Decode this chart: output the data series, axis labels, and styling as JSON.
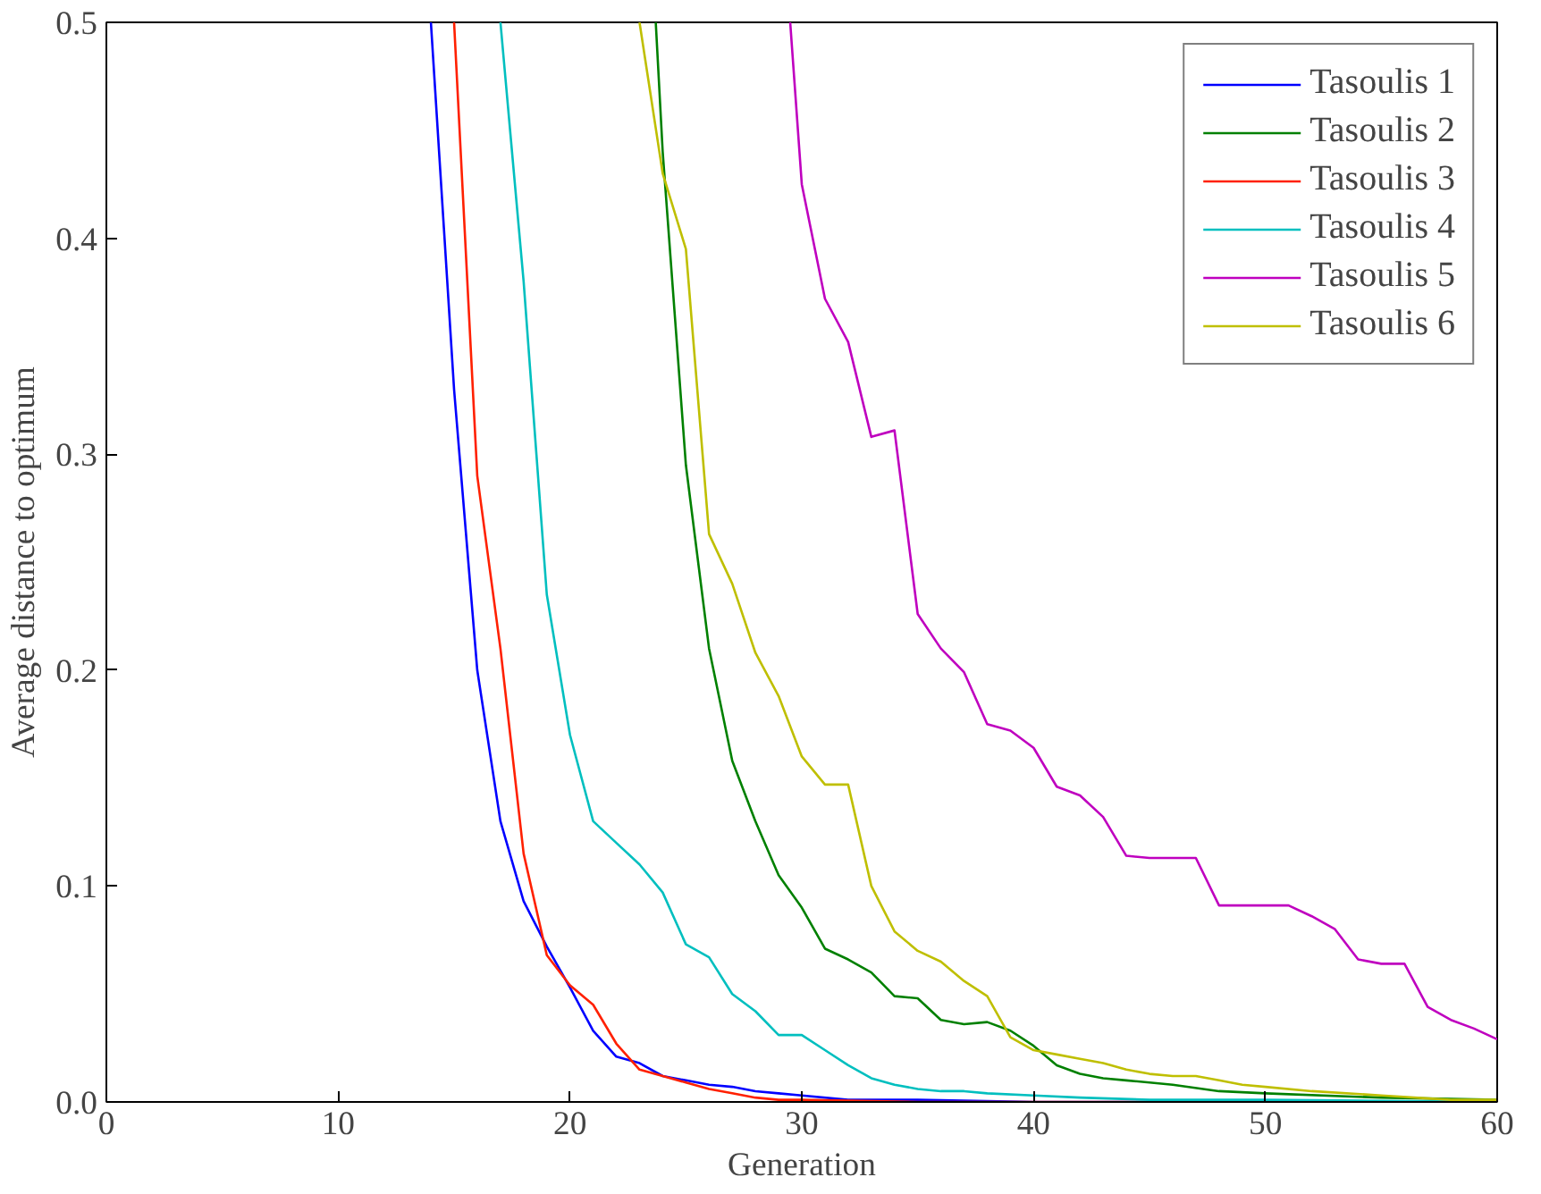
{
  "chart_data": {
    "type": "line",
    "xlabel": "Generation",
    "ylabel": "Average distance to optimum",
    "xlim": [
      0,
      60
    ],
    "ylim": [
      0,
      0.5
    ],
    "xticks": [
      0,
      10,
      20,
      30,
      40,
      50,
      60
    ],
    "yticks": [
      {
        "value": 0,
        "label": "0.0"
      },
      0.1,
      0.2,
      0.3,
      0.4,
      0.5
    ],
    "grid": false,
    "legend": "top right",
    "marker": "none",
    "line_style": "solid",
    "series": [
      {
        "name": "Tasoulis 1",
        "color": "#0000ff",
        "x": [
          14,
          15,
          16,
          17,
          18,
          19,
          20,
          21,
          22,
          23,
          24,
          25,
          26,
          27,
          28,
          29,
          30,
          32,
          35,
          40,
          60
        ],
        "values": [
          0.5,
          0.33,
          0.2,
          0.13,
          0.093,
          0.072,
          0.053,
          0.033,
          0.021,
          0.018,
          0.012,
          0.01,
          0.008,
          0.007,
          0.005,
          0.004,
          0.003,
          0.001,
          0.001,
          0,
          0
        ]
      },
      {
        "name": "Tasoulis 2",
        "color": "#008000",
        "x": [
          23.7,
          24,
          25,
          26,
          27,
          28,
          29,
          30,
          31,
          32,
          33,
          34,
          35,
          36,
          37,
          38,
          39,
          40,
          41,
          42,
          43,
          44,
          45,
          46,
          48,
          50,
          55,
          60
        ],
        "values": [
          0.5,
          0.44,
          0.295,
          0.21,
          0.158,
          0.13,
          0.105,
          0.09,
          0.071,
          0.066,
          0.06,
          0.049,
          0.048,
          0.038,
          0.036,
          0.037,
          0.033,
          0.026,
          0.017,
          0.013,
          0.011,
          0.01,
          0.009,
          0.008,
          0.005,
          0.004,
          0.002,
          0.001
        ]
      },
      {
        "name": "Tasoulis 3",
        "color": "#ff2000",
        "x": [
          15,
          16,
          17,
          18,
          19,
          20,
          21,
          22,
          23,
          24,
          25,
          26,
          27,
          28,
          29,
          30,
          35,
          60
        ],
        "values": [
          0.5,
          0.29,
          0.21,
          0.115,
          0.068,
          0.054,
          0.045,
          0.027,
          0.015,
          0.012,
          0.009,
          0.006,
          0.004,
          0.002,
          0.001,
          0.001,
          0,
          0
        ]
      },
      {
        "name": "Tasoulis 4",
        "color": "#00bfbf",
        "x": [
          17,
          18,
          19,
          20,
          21,
          22,
          23,
          24,
          25,
          26,
          27,
          28,
          29,
          30,
          31,
          32,
          33,
          34,
          35,
          36,
          37,
          38,
          40,
          42,
          45,
          50,
          60
        ],
        "values": [
          0.5,
          0.38,
          0.235,
          0.17,
          0.13,
          0.12,
          0.11,
          0.097,
          0.073,
          0.067,
          0.05,
          0.042,
          0.031,
          0.031,
          0.024,
          0.017,
          0.011,
          0.008,
          0.006,
          0.005,
          0.005,
          0.004,
          0.003,
          0.002,
          0.001,
          0.001,
          0
        ]
      },
      {
        "name": "Tasoulis 5",
        "color": "#bf00bf",
        "x": [
          29.5,
          30,
          31,
          32,
          33,
          34,
          35,
          36,
          37,
          38,
          39,
          40,
          41,
          42,
          43,
          44,
          45,
          46,
          47,
          48,
          49,
          50,
          51,
          52,
          53,
          54,
          55,
          56,
          57,
          58,
          59,
          60
        ],
        "values": [
          0.5,
          0.425,
          0.372,
          0.352,
          0.308,
          0.311,
          0.226,
          0.21,
          0.199,
          0.175,
          0.172,
          0.164,
          0.146,
          0.142,
          0.132,
          0.114,
          0.113,
          0.113,
          0.113,
          0.091,
          0.091,
          0.091,
          0.091,
          0.086,
          0.08,
          0.066,
          0.064,
          0.064,
          0.044,
          0.038,
          0.034,
          0.029
        ]
      },
      {
        "name": "Tasoulis 6",
        "color": "#bfbf00",
        "x": [
          23,
          24,
          25,
          26,
          27,
          28,
          29,
          30,
          31,
          32,
          33,
          34,
          35,
          36,
          37,
          38,
          39,
          40,
          41,
          42,
          43,
          44,
          45,
          46,
          47,
          48,
          49,
          50,
          52,
          55,
          58,
          60
        ],
        "values": [
          0.5,
          0.43,
          0.395,
          0.263,
          0.24,
          0.208,
          0.188,
          0.16,
          0.147,
          0.147,
          0.1,
          0.079,
          0.07,
          0.065,
          0.056,
          0.049,
          0.03,
          0.024,
          0.022,
          0.02,
          0.018,
          0.015,
          0.013,
          0.012,
          0.012,
          0.01,
          0.008,
          0.007,
          0.005,
          0.003,
          0.001,
          0.001
        ]
      }
    ]
  }
}
